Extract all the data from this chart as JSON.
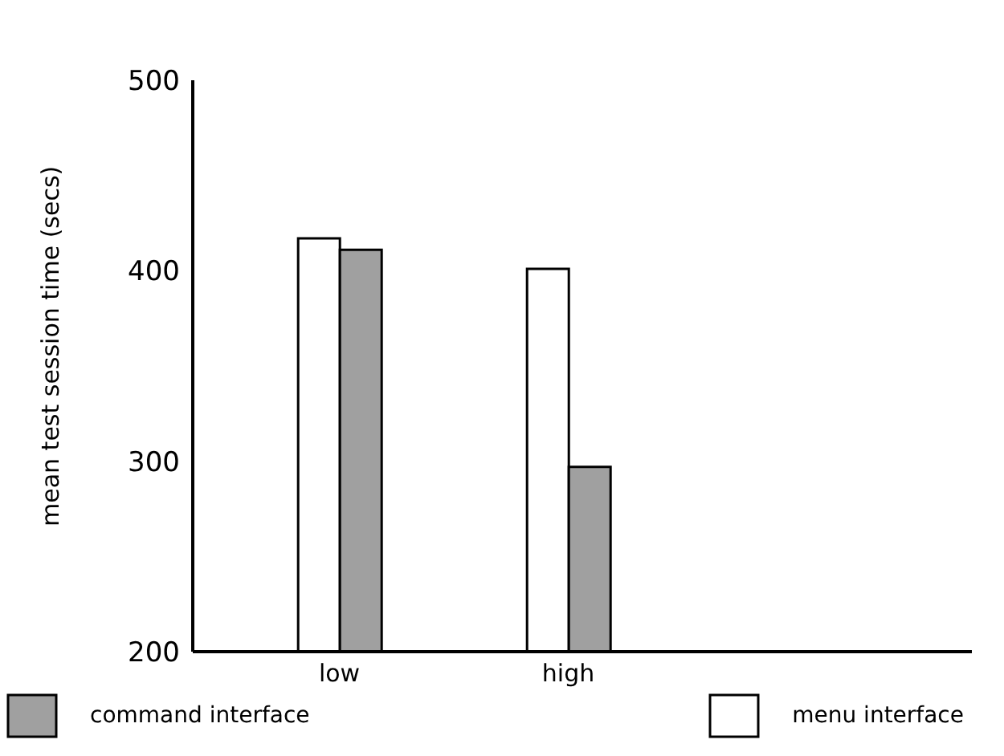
{
  "chart_data": {
    "type": "bar",
    "ylabel": "mean test session time (secs)",
    "categories": [
      "low",
      "high"
    ],
    "series": [
      {
        "name": "menu interface",
        "color": "#ffffff",
        "values": [
          417,
          401
        ]
      },
      {
        "name": "command interface",
        "color": "#a0a0a0",
        "values": [
          411,
          297
        ]
      }
    ],
    "ylim": [
      200,
      500
    ],
    "yticks": [
      200,
      300,
      400,
      500
    ],
    "legend": "bottom"
  }
}
